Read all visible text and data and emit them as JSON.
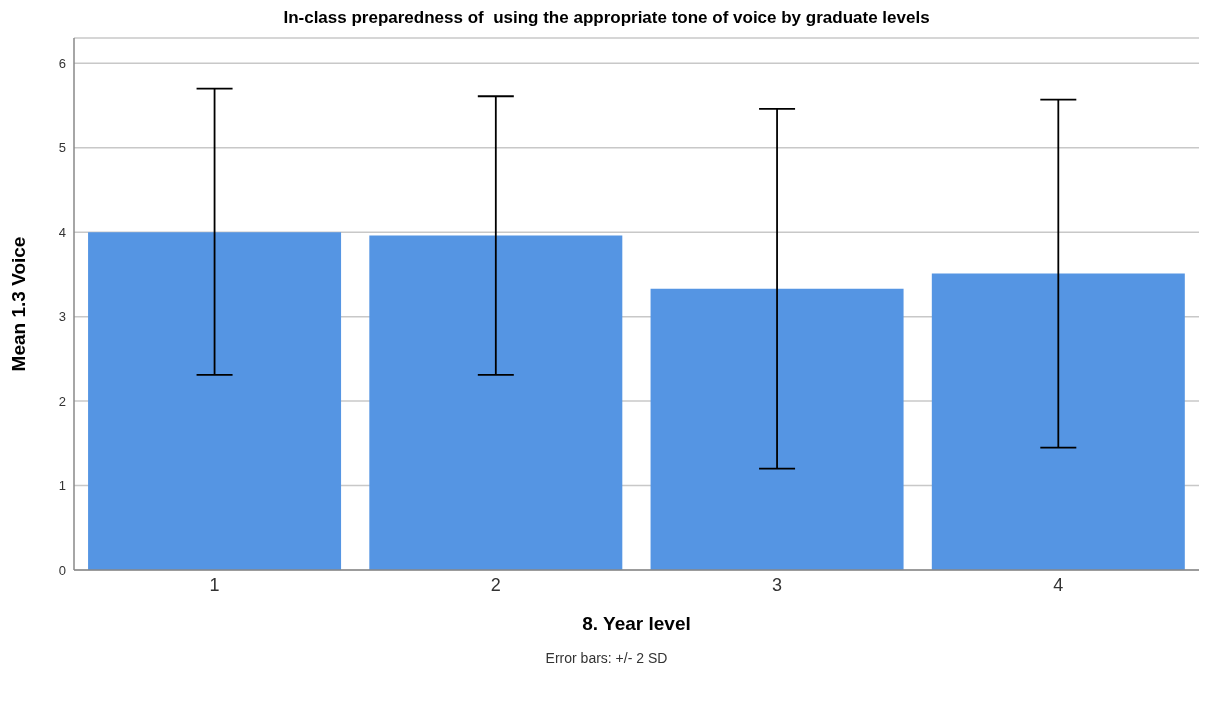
{
  "chart_data": {
    "type": "bar",
    "title": "In-class preparedness of  using the appropriate tone of voice by graduate levels",
    "xlabel": "8. Year level",
    "ylabel": "Mean 1.3 Voice",
    "categories": [
      "1",
      "2",
      "3",
      "4"
    ],
    "values": [
      4.0,
      3.96,
      3.33,
      3.51
    ],
    "errors": [
      [
        2.31,
        5.7
      ],
      [
        2.31,
        5.61
      ],
      [
        1.2,
        5.46
      ],
      [
        1.45,
        5.57
      ]
    ],
    "color": "#5595e3",
    "ylim": [
      0,
      6.3
    ],
    "yticks": [
      0,
      1,
      2,
      3,
      4,
      5,
      6
    ],
    "grid": "y",
    "annotations": [
      "Error bars: +/- 2 SD"
    ]
  }
}
